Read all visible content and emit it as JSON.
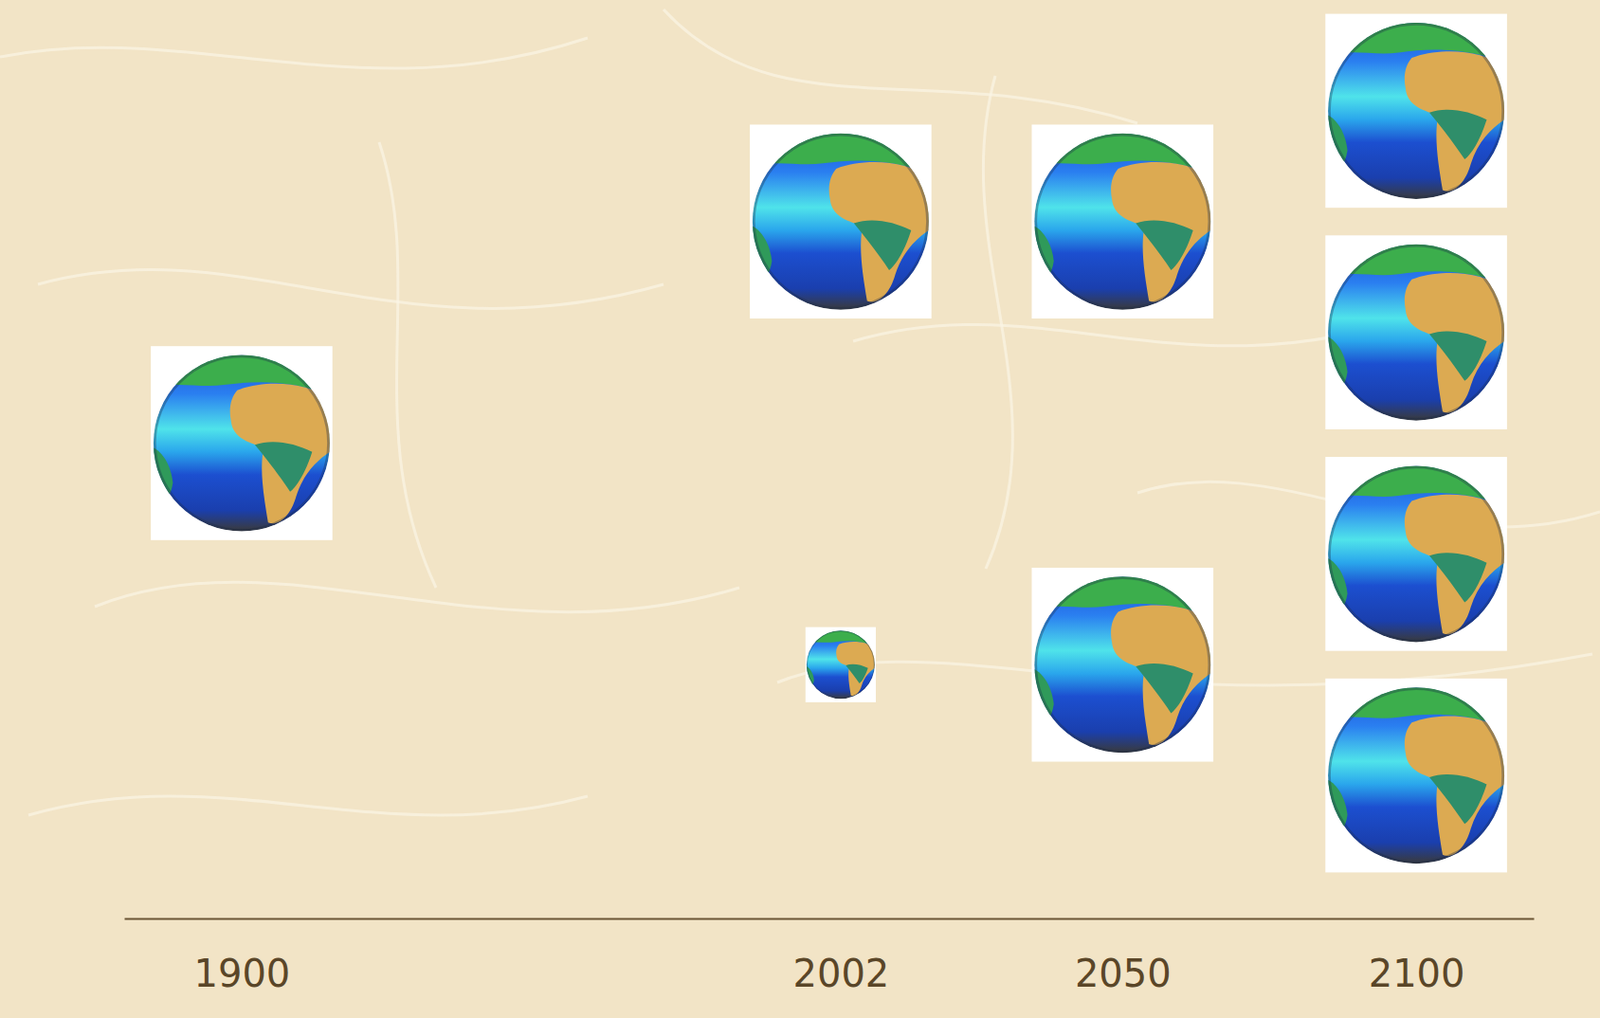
{
  "chart_data": {
    "type": "pictograph",
    "x": [
      1900,
      2002,
      2050,
      2100
    ],
    "values": [
      1,
      1.15,
      2,
      4
    ],
    "xlim": [
      1880,
      2120
    ],
    "xticks": [
      1900,
      2002,
      2050,
      2100
    ],
    "tick_labels": "x"
  }
}
